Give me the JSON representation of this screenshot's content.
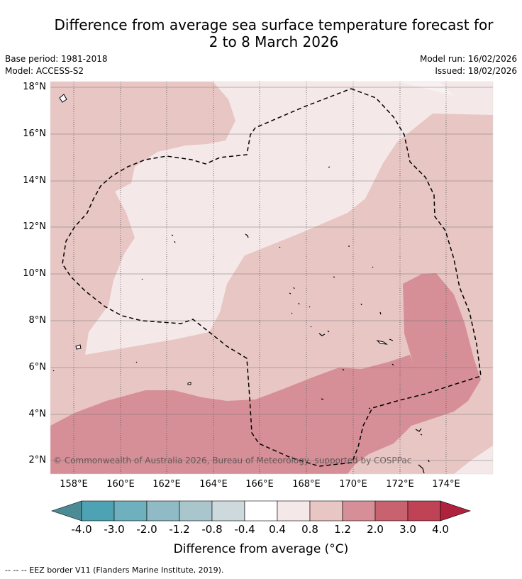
{
  "title": {
    "line1": "Difference from average sea surface temperature forecast for",
    "line2": "2 to 8 March 2026"
  },
  "meta": {
    "base_period": "Base period: 1981-2018",
    "model": "Model: ACCESS-S2",
    "model_run": "Model run: 16/02/2026",
    "issued": "Issued: 18/02/2026"
  },
  "map": {
    "copyright": "© Commonwealth of Australia 2026, Bureau of Meteorology, supported by COSPPac",
    "lat_labels": [
      "18°N",
      "16°N",
      "14°N",
      "12°N",
      "10°N",
      "8°N",
      "6°N",
      "4°N",
      "2°N"
    ],
    "lon_labels": [
      "158°E",
      "160°E",
      "162°E",
      "164°E",
      "166°E",
      "168°E",
      "170°E",
      "172°E",
      "174°E"
    ]
  },
  "colorbar": {
    "ticks": [
      "-4.0",
      "-3.0",
      "-2.0",
      "-1.2",
      "-0.8",
      "-0.4",
      "0.4",
      "0.8",
      "1.2",
      "2.0",
      "3.0",
      "4.0"
    ],
    "colors": [
      "#4a8b96",
      "#4da3b4",
      "#6fb0bf",
      "#8fbac6",
      "#a8c6cc",
      "#cdd9dc",
      "#ffffff",
      "#f5e8e8",
      "#e8c6c4",
      "#d68f97",
      "#c9626f",
      "#bf4255",
      "#b0213e"
    ],
    "label": "Difference from average (°C)"
  },
  "footnote": "-- -- -- EEZ border V11 (Flanders Marine Institute, 2019)."
}
